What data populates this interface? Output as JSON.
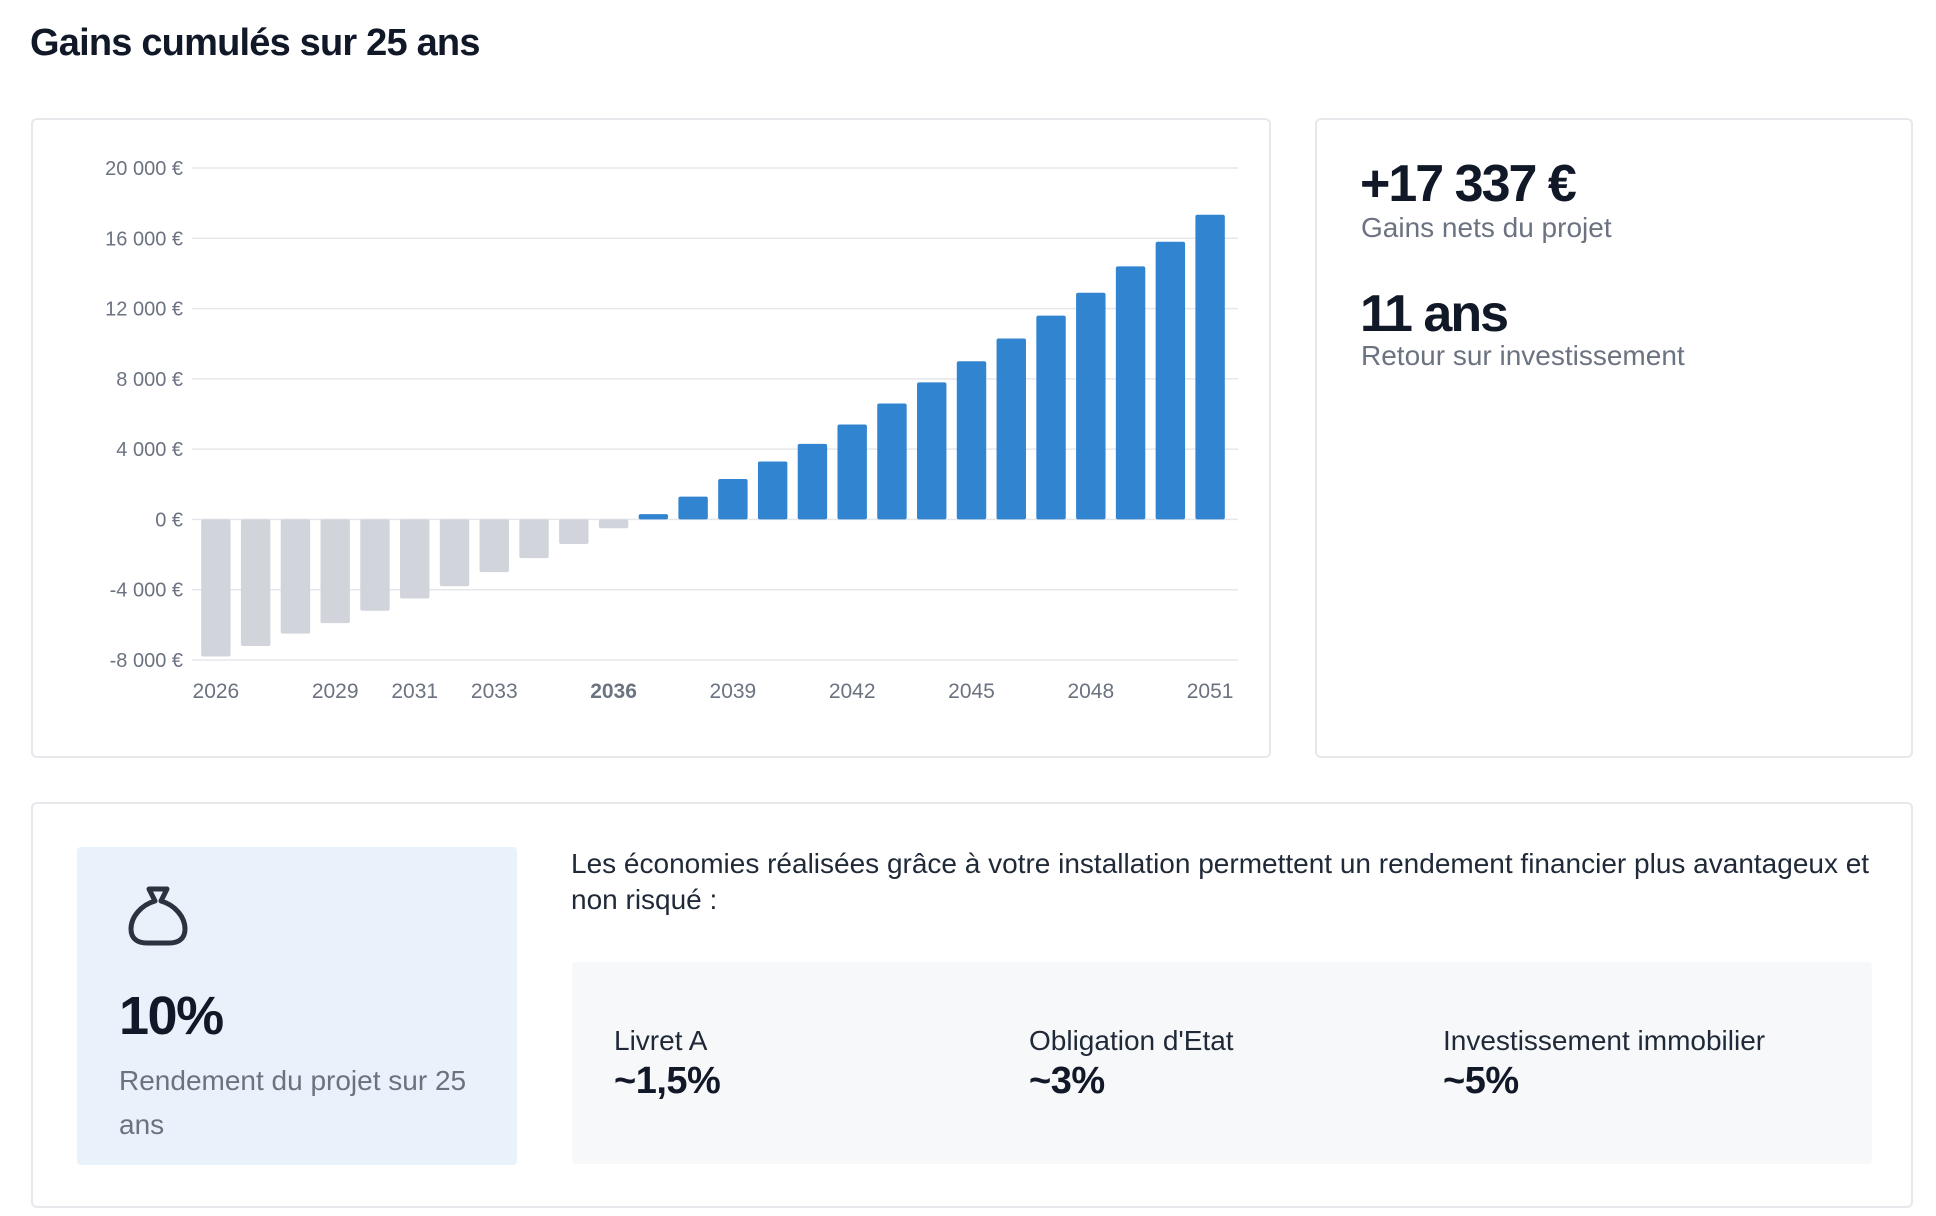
{
  "page_title": "Gains cumulés sur 25 ans",
  "chart_data": {
    "type": "bar",
    "x": [
      2026,
      2027,
      2028,
      2029,
      2030,
      2031,
      2032,
      2033,
      2034,
      2035,
      2036,
      2037,
      2038,
      2039,
      2040,
      2041,
      2042,
      2043,
      2044,
      2045,
      2046,
      2047,
      2048,
      2049,
      2050,
      2051
    ],
    "values": [
      -7800,
      -7200,
      -6500,
      -5900,
      -5200,
      -4500,
      -3800,
      -3000,
      -2200,
      -1400,
      -500,
      300,
      1300,
      2300,
      3300,
      4300,
      5400,
      6600,
      7800,
      9000,
      10300,
      11600,
      12900,
      14400,
      15800,
      17337
    ],
    "negative_color": "#d1d5db",
    "positive_color": "#3184d0",
    "ylim": [
      -8000,
      20000
    ],
    "y_ticks": [
      {
        "value": 20000,
        "label": "20 000 €"
      },
      {
        "value": 16000,
        "label": "16 000 €"
      },
      {
        "value": 12000,
        "label": "12 000 €"
      },
      {
        "value": 8000,
        "label": "8 000 €"
      },
      {
        "value": 4000,
        "label": "4 000 €"
      },
      {
        "value": 0,
        "label": "0 €"
      },
      {
        "value": -4000,
        "label": "-4 000 €"
      },
      {
        "value": -8000,
        "label": "-8 000 €"
      }
    ],
    "x_ticks": [
      {
        "value": 2026,
        "label": "2026",
        "bold": false
      },
      {
        "value": 2029,
        "label": "2029",
        "bold": false
      },
      {
        "value": 2031,
        "label": "2031",
        "bold": false
      },
      {
        "value": 2033,
        "label": "2033",
        "bold": false
      },
      {
        "value": 2036,
        "label": "2036",
        "bold": true
      },
      {
        "value": 2039,
        "label": "2039",
        "bold": false
      },
      {
        "value": 2042,
        "label": "2042",
        "bold": false
      },
      {
        "value": 2045,
        "label": "2045",
        "bold": false
      },
      {
        "value": 2048,
        "label": "2048",
        "bold": false
      },
      {
        "value": 2051,
        "label": "2051",
        "bold": false
      }
    ],
    "grid": true,
    "title": "",
    "xlabel": "",
    "ylabel": ""
  },
  "stats": {
    "net_gain_value": "+17 337 €",
    "net_gain_label": "Gains nets du projet",
    "roi_value": "11 ans",
    "roi_label": "Retour sur investissement"
  },
  "yield": {
    "icon": "money-bag-icon",
    "value": "10%",
    "label": "Rendement du projet sur 25 ans"
  },
  "comparison": {
    "intro": "Les économies réalisées grâce à votre installation permettent un rendement financier plus avantageux et non risqué :",
    "items": [
      {
        "name": "Livret A",
        "value": "~1,5%"
      },
      {
        "name": "Obligation d'Etat",
        "value": "~3%"
      },
      {
        "name": "Investissement immobilier",
        "value": "~5%"
      }
    ]
  }
}
